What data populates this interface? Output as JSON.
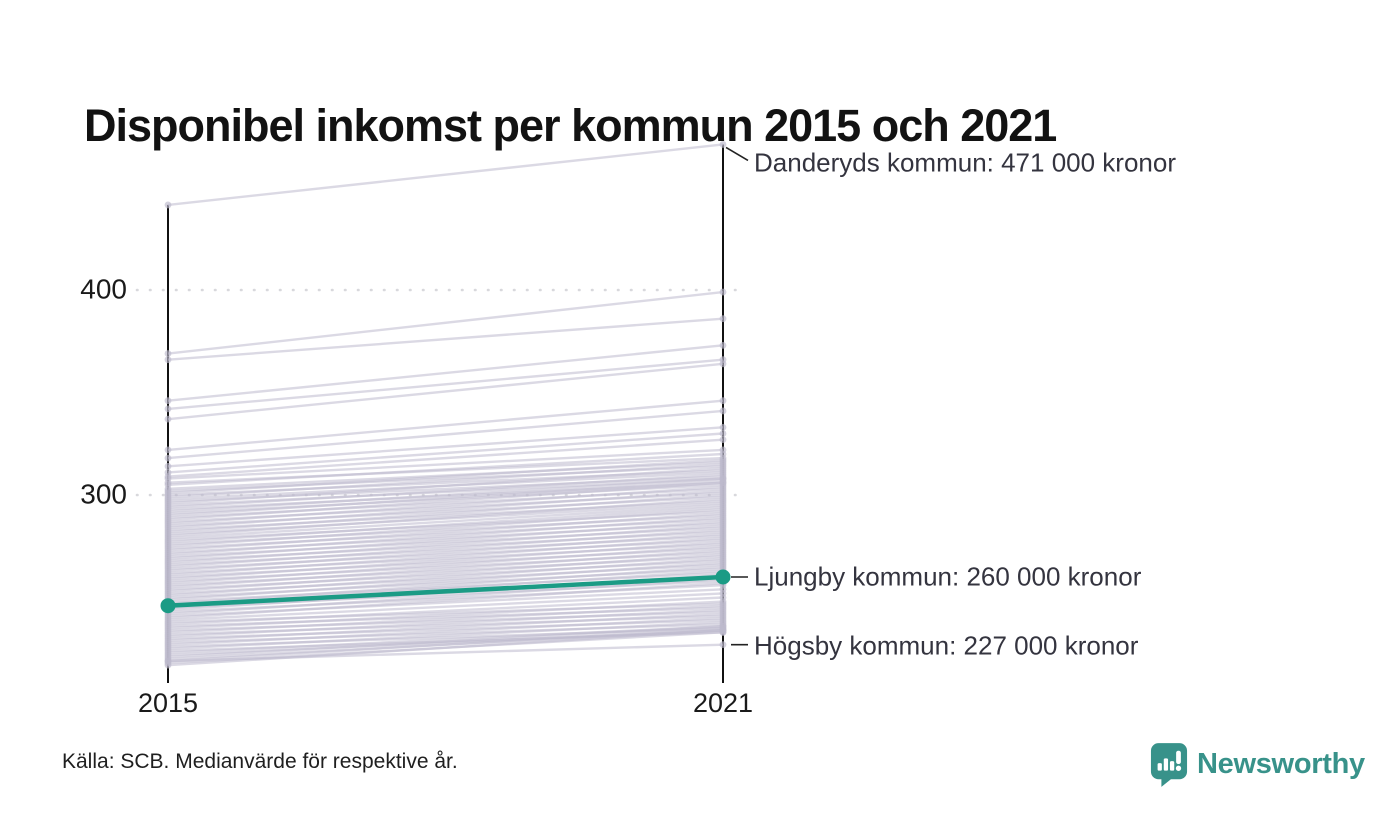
{
  "title": "Disponibel inkomst per kommun 2015 och 2021",
  "source": "Källa: SCB. Medianvärde för respektive år.",
  "brand": {
    "name": "Newsworthy"
  },
  "colors": {
    "highlight_teal": "#1b9b85",
    "brand_teal": "#38928a",
    "background_line": "#bdbacd",
    "axis": "#111111",
    "grid": "#d8d8dc",
    "annotation_text": "#34343f",
    "title_text": "#121212"
  },
  "chart_data": {
    "type": "line",
    "subtype": "slope-chart",
    "x_categories": [
      "2015",
      "2021"
    ],
    "ytick_labels": [
      "400",
      "300"
    ],
    "yticks": [
      400,
      300
    ],
    "ylim": [
      208,
      480
    ],
    "grid": "dotted-horizontal",
    "unit": "kronor (tusental)",
    "highlight": {
      "name": "Ljungby kommun",
      "values_2015_2021": [
        246,
        260
      ]
    },
    "annotations": [
      {
        "id": "danderyd",
        "label": "Danderyds kommun: 471 000 kronor",
        "value": 471,
        "connector": "diagonal"
      },
      {
        "id": "ljungby",
        "label": "Ljungby kommun: 260 000 kronor",
        "value": 260,
        "connector": "dash"
      },
      {
        "id": "hogsby",
        "label": "Högsby kommun: 227 000 kronor",
        "value": 227,
        "connector": "dash"
      }
    ],
    "background_lines": [
      [
        441.5,
        471
      ],
      [
        369,
        399
      ],
      [
        366,
        386
      ],
      [
        346,
        373
      ],
      [
        342,
        366
      ],
      [
        337,
        364
      ],
      [
        322,
        346
      ],
      [
        318,
        341
      ],
      [
        314,
        333
      ],
      [
        311,
        330
      ],
      [
        309,
        327
      ],
      [
        308,
        322
      ],
      [
        306,
        318
      ],
      [
        305,
        320
      ],
      [
        303,
        316
      ],
      [
        302,
        314
      ],
      [
        301,
        317
      ],
      [
        300,
        312
      ],
      [
        299,
        315
      ],
      [
        298,
        311
      ],
      [
        297,
        309
      ],
      [
        296,
        313
      ],
      [
        295,
        308
      ],
      [
        294,
        310
      ],
      [
        293,
        306
      ],
      [
        292,
        308
      ],
      [
        291,
        305
      ],
      [
        290,
        307
      ],
      [
        289,
        303
      ],
      [
        288,
        306
      ],
      [
        287,
        301
      ],
      [
        286,
        304
      ],
      [
        285,
        299
      ],
      [
        284,
        302
      ],
      [
        283,
        297
      ],
      [
        282,
        300
      ],
      [
        281,
        296
      ],
      [
        280,
        298
      ],
      [
        279,
        295
      ],
      [
        278,
        292
      ],
      [
        277,
        294
      ],
      [
        276,
        290
      ],
      [
        275,
        293
      ],
      [
        274,
        288
      ],
      [
        273,
        291
      ],
      [
        272,
        286
      ],
      [
        271,
        289
      ],
      [
        270,
        284
      ],
      [
        269,
        287
      ],
      [
        268,
        282
      ],
      [
        267,
        285
      ],
      [
        266,
        280
      ],
      [
        265,
        283
      ],
      [
        264,
        278
      ],
      [
        263,
        281
      ],
      [
        262,
        276
      ],
      [
        261,
        279
      ],
      [
        260,
        274
      ],
      [
        259,
        277
      ],
      [
        258,
        272
      ],
      [
        257,
        275
      ],
      [
        256,
        270
      ],
      [
        255,
        273
      ],
      [
        254,
        268
      ],
      [
        253,
        271
      ],
      [
        252,
        266
      ],
      [
        251,
        269
      ],
      [
        250,
        264
      ],
      [
        249,
        267
      ],
      [
        248,
        262
      ],
      [
        247,
        265
      ],
      [
        246,
        263
      ],
      [
        245,
        258
      ],
      [
        244,
        261
      ],
      [
        243,
        256
      ],
      [
        242,
        259
      ],
      [
        241,
        254
      ],
      [
        240,
        257
      ],
      [
        239,
        252
      ],
      [
        238,
        247
      ],
      [
        237,
        250
      ],
      [
        236,
        245
      ],
      [
        235,
        248
      ],
      [
        234,
        243
      ],
      [
        233,
        246
      ],
      [
        232,
        241
      ],
      [
        231,
        244
      ],
      [
        230,
        239
      ],
      [
        229,
        242
      ],
      [
        228,
        237
      ],
      [
        227,
        240
      ],
      [
        226,
        235
      ],
      [
        225,
        238
      ],
      [
        224,
        233
      ],
      [
        223,
        236
      ],
      [
        222,
        234
      ],
      [
        221,
        236
      ],
      [
        220,
        234
      ],
      [
        219,
        235
      ],
      [
        218,
        233
      ],
      [
        217,
        234
      ],
      [
        219,
        227
      ]
    ]
  }
}
